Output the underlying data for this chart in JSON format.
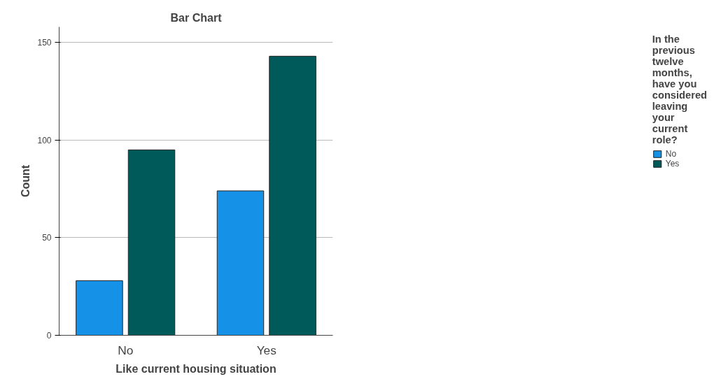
{
  "chart_data": {
    "type": "bar",
    "title": "Bar Chart",
    "xlabel": "Like current housing situation",
    "ylabel": "Count",
    "legend_title": "In the previous twelve months, have you considered leaving your current role?",
    "categories": [
      "No",
      "Yes"
    ],
    "series": [
      {
        "name": "No",
        "color": "#1591e8",
        "values": [
          28,
          74
        ]
      },
      {
        "name": "Yes",
        "color": "#005a5a",
        "values": [
          95,
          143
        ]
      }
    ],
    "ylim": [
      0,
      158
    ],
    "yticks": [
      0,
      50,
      100,
      150
    ],
    "grid": "y",
    "legend": "right"
  }
}
